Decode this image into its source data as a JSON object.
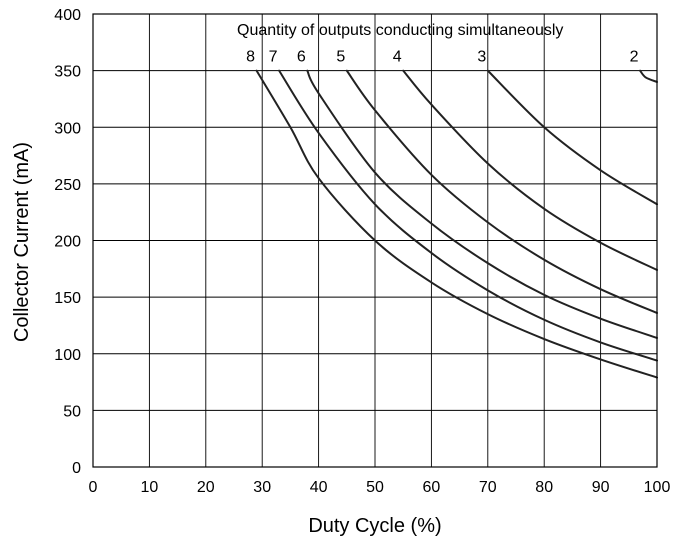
{
  "chart_data": {
    "type": "line",
    "title": "",
    "xlabel": "Duty Cycle (%)",
    "ylabel": "Collector Current (mA)",
    "xlim": [
      0,
      100
    ],
    "ylim": [
      0,
      400
    ],
    "x_ticks": [
      0,
      10,
      20,
      30,
      40,
      50,
      60,
      70,
      80,
      90,
      100
    ],
    "y_ticks": [
      0,
      50,
      100,
      150,
      200,
      250,
      300,
      350,
      400
    ],
    "x_tick_labels": [
      "0",
      "10",
      "20",
      "30",
      "40",
      "50",
      "60",
      "70",
      "80",
      "90",
      "100"
    ],
    "y_tick_labels": [
      "0",
      "50",
      "100",
      "150",
      "200",
      "250",
      "300",
      "350",
      "400"
    ],
    "grid": true,
    "annotation": "Quantity of outputs conducting simultaneously",
    "series": [
      {
        "label": "2",
        "points": [
          [
            97,
            350
          ],
          [
            98,
            344
          ],
          [
            100,
            340
          ]
        ]
      },
      {
        "label": "3",
        "points": [
          [
            70,
            350
          ],
          [
            80,
            300
          ],
          [
            90,
            262
          ],
          [
            100,
            232
          ]
        ]
      },
      {
        "label": "4",
        "points": [
          [
            55,
            350
          ],
          [
            60,
            320
          ],
          [
            70,
            268
          ],
          [
            80,
            228
          ],
          [
            90,
            198
          ],
          [
            100,
            174
          ]
        ]
      },
      {
        "label": "5",
        "points": [
          [
            45,
            350
          ],
          [
            50,
            315
          ],
          [
            60,
            258
          ],
          [
            70,
            216
          ],
          [
            80,
            183
          ],
          [
            90,
            157
          ],
          [
            100,
            136
          ]
        ]
      },
      {
        "label": "6",
        "points": [
          [
            38,
            350
          ],
          [
            40,
            330
          ],
          [
            50,
            260
          ],
          [
            60,
            215
          ],
          [
            70,
            180
          ],
          [
            80,
            152
          ],
          [
            90,
            131
          ],
          [
            100,
            114
          ]
        ]
      },
      {
        "label": "7",
        "points": [
          [
            33,
            350
          ],
          [
            40,
            295
          ],
          [
            50,
            232
          ],
          [
            60,
            189
          ],
          [
            70,
            156
          ],
          [
            80,
            130
          ],
          [
            90,
            110
          ],
          [
            100,
            94
          ]
        ]
      },
      {
        "label": "8",
        "points": [
          [
            29,
            350
          ],
          [
            35,
            300
          ],
          [
            40,
            255
          ],
          [
            50,
            200
          ],
          [
            60,
            163
          ],
          [
            70,
            135
          ],
          [
            80,
            113
          ],
          [
            90,
            95
          ],
          [
            100,
            79
          ]
        ]
      }
    ],
    "line_color": "#222222",
    "grid_color": "#000000"
  }
}
